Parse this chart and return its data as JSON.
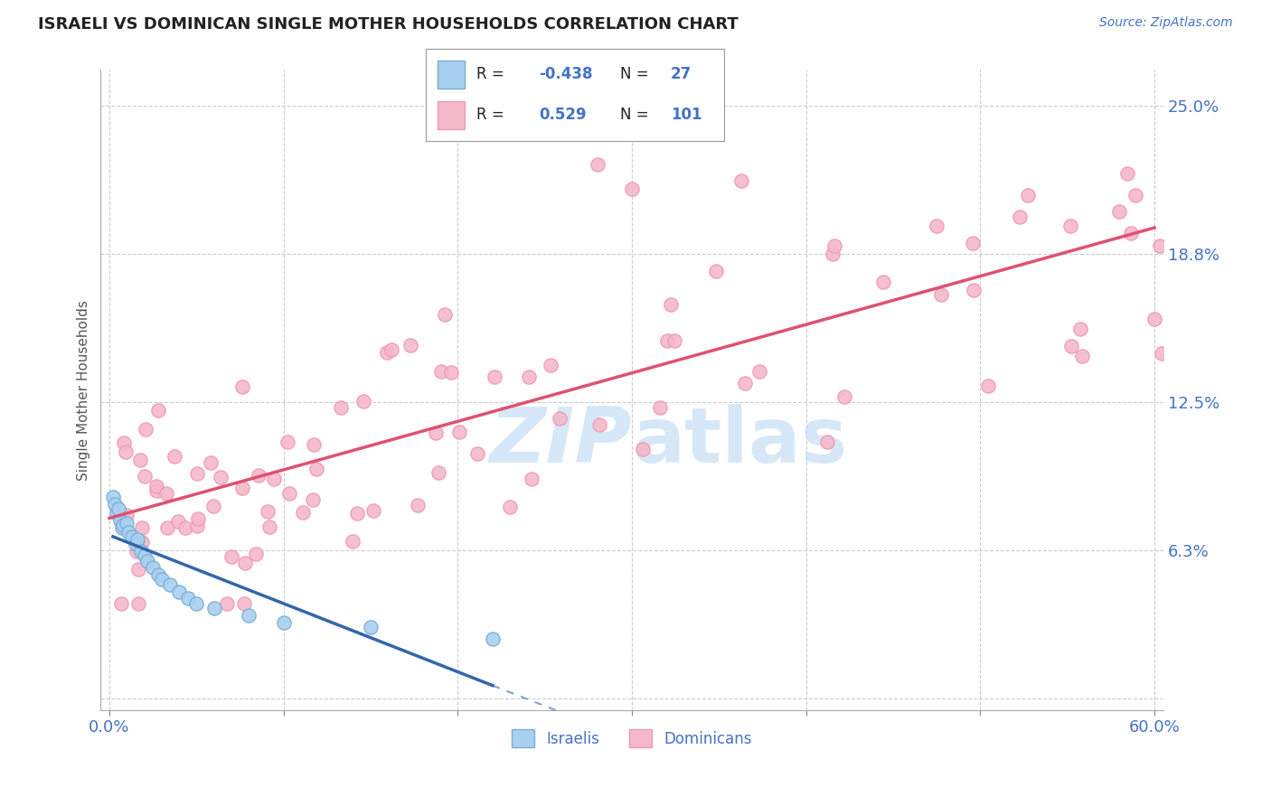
{
  "title": "ISRAELI VS DOMINICAN SINGLE MOTHER HOUSEHOLDS CORRELATION CHART",
  "source": "Source: ZipAtlas.com",
  "ylabel": "Single Mother Households",
  "xlim": [
    -0.005,
    0.605
  ],
  "ylim": [
    -0.005,
    0.265
  ],
  "yticks": [
    0.0,
    0.0625,
    0.125,
    0.1875,
    0.25
  ],
  "ytick_labels": [
    "",
    "6.3%",
    "12.5%",
    "18.8%",
    "25.0%"
  ],
  "xticks": [
    0.0,
    0.1,
    0.2,
    0.3,
    0.4,
    0.5,
    0.6
  ],
  "xtick_labels": [
    "0.0%",
    "",
    "",
    "",
    "",
    "",
    "60.0%"
  ],
  "israeli_R": -0.438,
  "israeli_N": 27,
  "dominican_R": 0.529,
  "dominican_N": 101,
  "israeli_color": "#a8d0f0",
  "dominican_color": "#f5b8cb",
  "israeli_edge_color": "#7aadd4",
  "dominican_edge_color": "#f09ab0",
  "israeli_line_color": "#3366aa",
  "dominican_line_color": "#e05070",
  "watermark_color": "#c5dff5",
  "background_color": "#ffffff",
  "grid_color": "#cccccc",
  "axis_label_color": "#4472c4",
  "title_color": "#222222",
  "legend_r_color": "#4472c4",
  "legend_n_color": "#4472c4"
}
